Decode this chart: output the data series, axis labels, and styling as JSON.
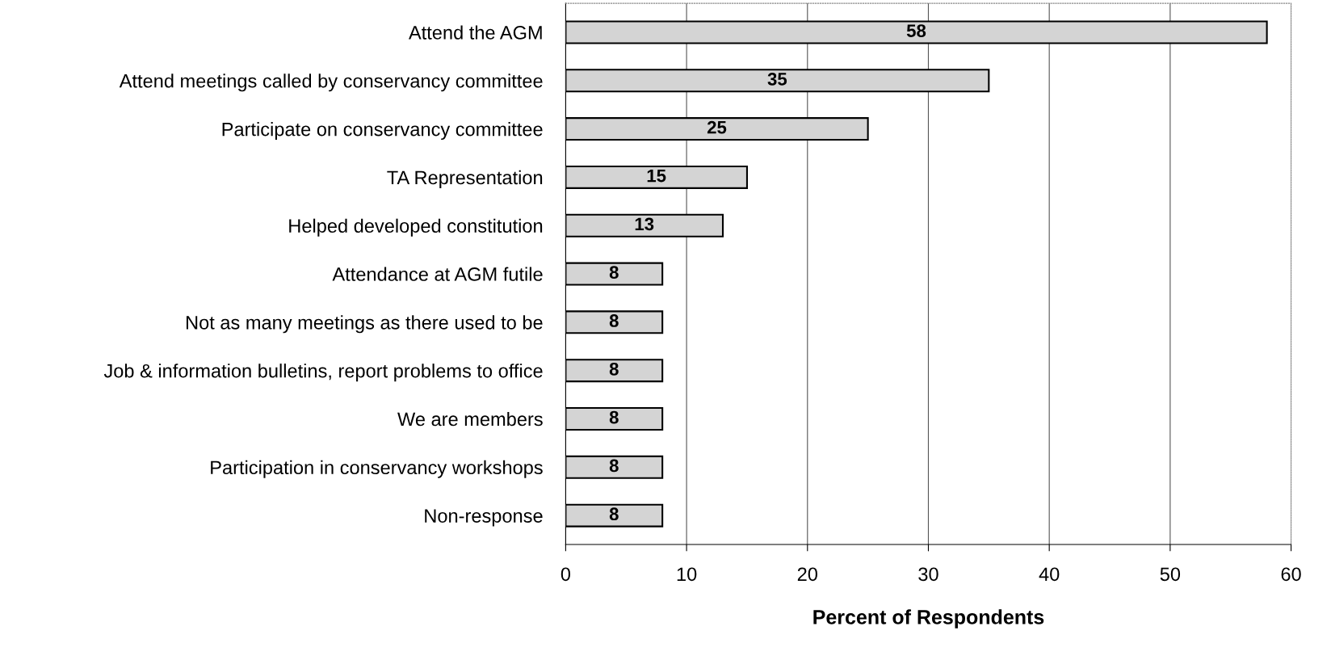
{
  "chart_data": {
    "type": "bar",
    "orientation": "horizontal",
    "xlabel": "Percent of Respondents",
    "categories": [
      "Attend the AGM",
      "Attend meetings called by conservancy committee",
      "Participate on conservancy committee",
      "TA Representation",
      "Helped developed constitution",
      "Attendance at AGM futile",
      "Not as many meetings as there used to be",
      "Job & information bulletins, report problems to office",
      "We are members",
      "Participation in conservancy workshops",
      "Non-response"
    ],
    "values": [
      58,
      35,
      25,
      15,
      13,
      8,
      8,
      8,
      8,
      8,
      8
    ],
    "color": "#d4d4d4",
    "xlim": [
      0,
      60
    ],
    "xticks": [
      0,
      10,
      20,
      30,
      40,
      50,
      60
    ],
    "grid": "x",
    "data_labels": true
  }
}
